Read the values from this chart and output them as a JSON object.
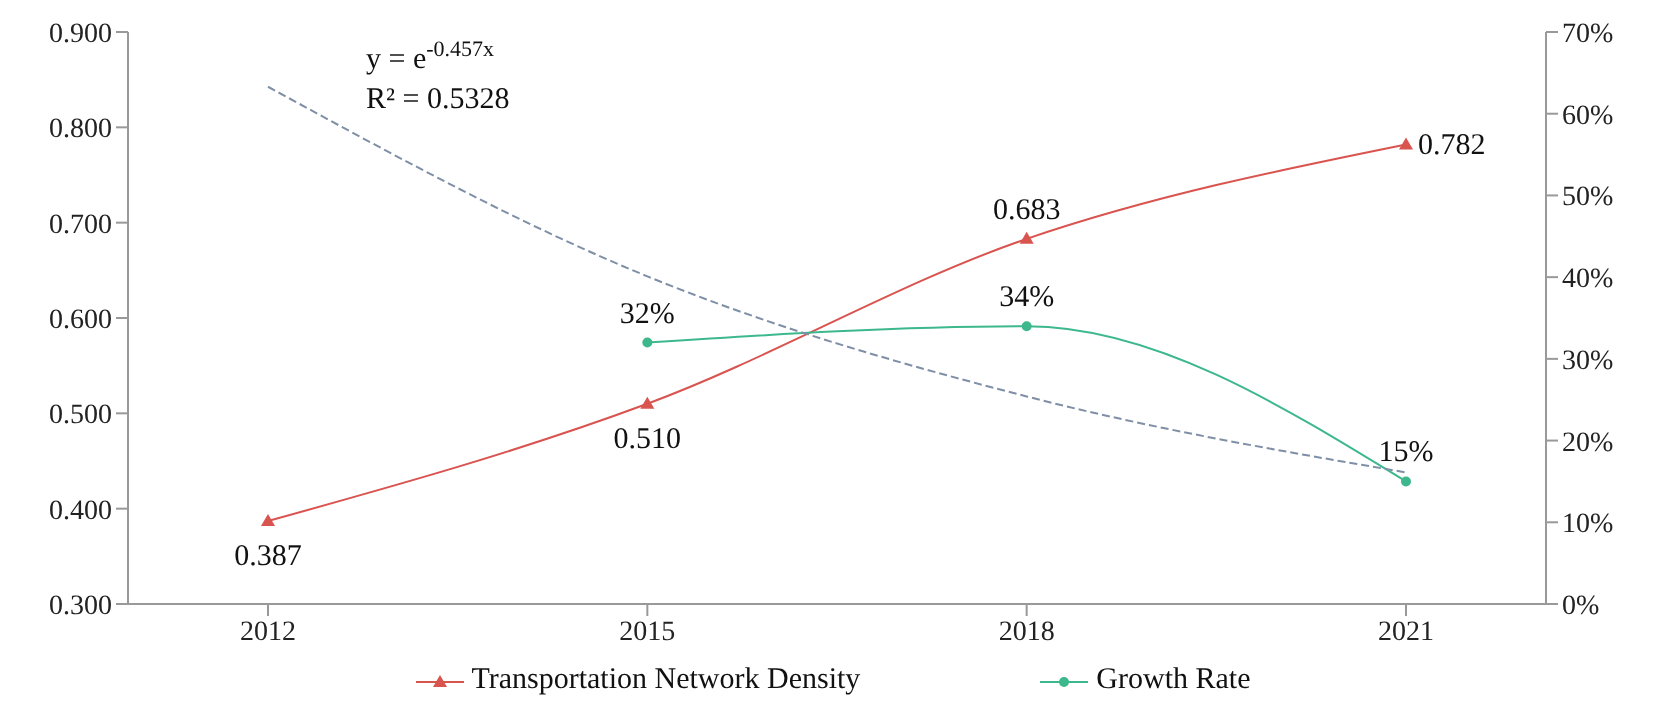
{
  "chart_data": {
    "type": "line",
    "categories": [
      "2012",
      "2015",
      "2018",
      "2021"
    ],
    "series": [
      {
        "name": "Transportation Network Density",
        "color": "#d9534f",
        "values": [
          0.387,
          0.51,
          0.683,
          0.782
        ],
        "marker": "triangle",
        "value_labels": [
          "0.387",
          "0.510",
          "0.683",
          "0.782"
        ]
      },
      {
        "name": "Growth Rate",
        "color": "#3cb88c",
        "values": [
          null,
          32,
          34,
          15
        ],
        "axis": "y2",
        "marker": "circle",
        "value_labels": [
          null,
          "32%",
          "34%",
          "15%"
        ]
      },
      {
        "color": "#7f8fa6",
        "values": [
          63.3,
          40.1,
          25.4,
          16.1
        ],
        "axis": "y2",
        "marker": "none",
        "line_style": "dashed"
      }
    ],
    "ylim": [
      0.3,
      0.9
    ],
    "yticks": [
      {
        "value": 0.3,
        "label": "0.300"
      },
      {
        "value": 0.4,
        "label": "0.400"
      },
      {
        "value": 0.5,
        "label": "0.500"
      },
      {
        "value": 0.6,
        "label": "0.600"
      },
      {
        "value": 0.7,
        "label": "0.700"
      },
      {
        "value": 0.8,
        "label": "0.800"
      },
      {
        "value": 0.9,
        "label": "0.900"
      }
    ],
    "y2lim": [
      0,
      70
    ],
    "y2ticks": [
      {
        "value": 0,
        "label": "0%"
      },
      {
        "value": 10,
        "label": "10%"
      },
      {
        "value": 20,
        "label": "20%"
      },
      {
        "value": 30,
        "label": "30%"
      },
      {
        "value": 40,
        "label": "40%"
      },
      {
        "value": 50,
        "label": "50%"
      },
      {
        "value": 60,
        "label": "60%"
      },
      {
        "value": 70,
        "label": "70%"
      }
    ],
    "annotations": [
      "y = e$^{-0.457x}$",
      "R² = 0.5328"
    ],
    "legend": "bottom",
    "grid": false
  }
}
